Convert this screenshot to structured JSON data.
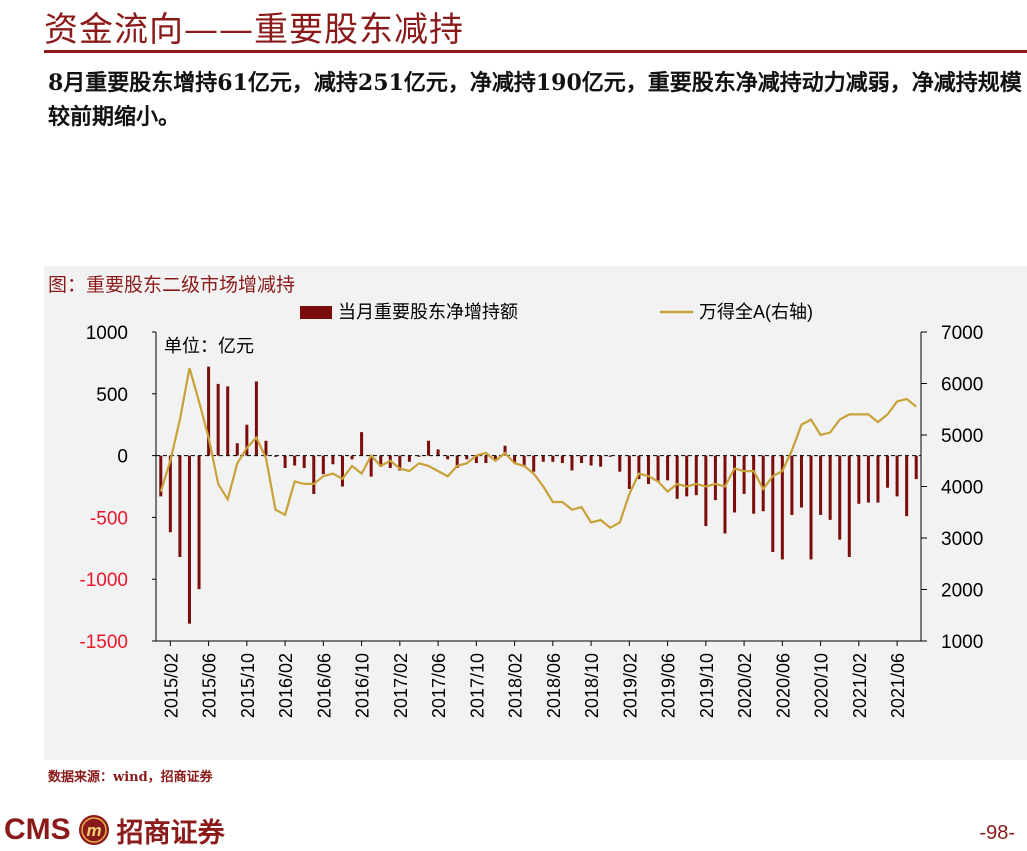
{
  "page": {
    "title": "资金流向——重要股东减持",
    "summary": "8月重要股东增持61亿元，减持251亿元，净减持190亿元，重要股东净减持动力减弱，净减持规模较前期缩小。",
    "chart_caption": "图：重要股东二级市场增减持",
    "source": "数据来源：wind，招商证券",
    "logo_text": "CMS",
    "logo_cn": "招商证券",
    "logo_symbol": "m",
    "page_number": "-98-"
  },
  "colors": {
    "bar": "#7b0c0c",
    "line": "#c9a139",
    "brand": "#8b1a1a",
    "left_tick": "#e8172b"
  },
  "chart_data": {
    "type": "bar",
    "unit_note": "单位：亿元",
    "legend": [
      "当月重要股东净增持额",
      "万得全A(右轴)"
    ],
    "legend_placement": "top",
    "x_tick_labels": [
      "2015/02",
      "2015/06",
      "2015/10",
      "2016/02",
      "2016/06",
      "2016/10",
      "2017/02",
      "2017/06",
      "2017/10",
      "2018/02",
      "2018/06",
      "2018/10",
      "2019/02",
      "2019/06",
      "2019/10",
      "2020/02",
      "2020/06",
      "2020/10",
      "2021/02",
      "2021/06"
    ],
    "y_left_ticks": [
      "1000",
      "500",
      "0",
      "-500",
      "-1000",
      "-1500"
    ],
    "y_right_ticks": [
      "7000",
      "6000",
      "5000",
      "4000",
      "3000",
      "2000",
      "1000"
    ],
    "ylim_left": [
      -1500,
      1000
    ],
    "ylim_right": [
      1000,
      7000
    ],
    "months": [
      "2015/01",
      "2015/02",
      "2015/03",
      "2015/04",
      "2015/05",
      "2015/06",
      "2015/07",
      "2015/08",
      "2015/09",
      "2015/10",
      "2015/11",
      "2015/12",
      "2016/01",
      "2016/02",
      "2016/03",
      "2016/04",
      "2016/05",
      "2016/06",
      "2016/07",
      "2016/08",
      "2016/09",
      "2016/10",
      "2016/11",
      "2016/12",
      "2017/01",
      "2017/02",
      "2017/03",
      "2017/04",
      "2017/05",
      "2017/06",
      "2017/07",
      "2017/08",
      "2017/09",
      "2017/10",
      "2017/11",
      "2017/12",
      "2018/01",
      "2018/02",
      "2018/03",
      "2018/04",
      "2018/05",
      "2018/06",
      "2018/07",
      "2018/08",
      "2018/09",
      "2018/10",
      "2018/11",
      "2018/12",
      "2019/01",
      "2019/02",
      "2019/03",
      "2019/04",
      "2019/05",
      "2019/06",
      "2019/07",
      "2019/08",
      "2019/09",
      "2019/10",
      "2019/11",
      "2019/12",
      "2020/01",
      "2020/02",
      "2020/03",
      "2020/04",
      "2020/05",
      "2020/06",
      "2020/07",
      "2020/08",
      "2020/09",
      "2020/10",
      "2020/11",
      "2020/12",
      "2021/01",
      "2021/02",
      "2021/03",
      "2021/04",
      "2021/05",
      "2021/06",
      "2021/07",
      "2021/08"
    ],
    "series": [
      {
        "name": "当月重要股东净增持额",
        "axis": "left",
        "values": [
          -330,
          -620,
          -820,
          -1360,
          -1080,
          720,
          580,
          560,
          100,
          250,
          600,
          120,
          -10,
          -100,
          -80,
          -100,
          -310,
          -150,
          -70,
          -250,
          -30,
          190,
          -170,
          -90,
          -100,
          -120,
          -50,
          -10,
          120,
          50,
          -30,
          -100,
          -30,
          -60,
          -60,
          -30,
          80,
          -60,
          -80,
          -130,
          -50,
          -50,
          -60,
          -120,
          -60,
          -80,
          -90,
          -10,
          -130,
          -270,
          -190,
          -230,
          -210,
          -200,
          -350,
          -330,
          -320,
          -570,
          -360,
          -630,
          -460,
          -310,
          -470,
          -450,
          -780,
          -840,
          -480,
          -420,
          -840,
          -480,
          -520,
          -680,
          -820,
          -390,
          -380,
          -380,
          -260,
          -330,
          -490,
          -190
        ]
      },
      {
        "name": "万得全A(右轴)",
        "axis": "right",
        "values": [
          3900,
          4500,
          5300,
          6300,
          5650,
          4950,
          4050,
          3750,
          4450,
          4750,
          4950,
          4550,
          3550,
          3450,
          4100,
          4050,
          4050,
          4200,
          4250,
          4150,
          4400,
          4250,
          4600,
          4400,
          4500,
          4350,
          4300,
          4450,
          4400,
          4300,
          4200,
          4400,
          4450,
          4600,
          4650,
          4500,
          4650,
          4450,
          4400,
          4250,
          4000,
          3700,
          3700,
          3550,
          3600,
          3300,
          3350,
          3200,
          3300,
          3850,
          4250,
          4200,
          4100,
          3900,
          4050,
          4000,
          4050,
          4000,
          4050,
          4000,
          4350,
          4300,
          4300,
          3950,
          4200,
          4300,
          4700,
          5200,
          5300,
          5000,
          5050,
          5300,
          5400,
          5400,
          5400,
          5250,
          5400,
          5650,
          5700,
          5550
        ]
      }
    ]
  }
}
